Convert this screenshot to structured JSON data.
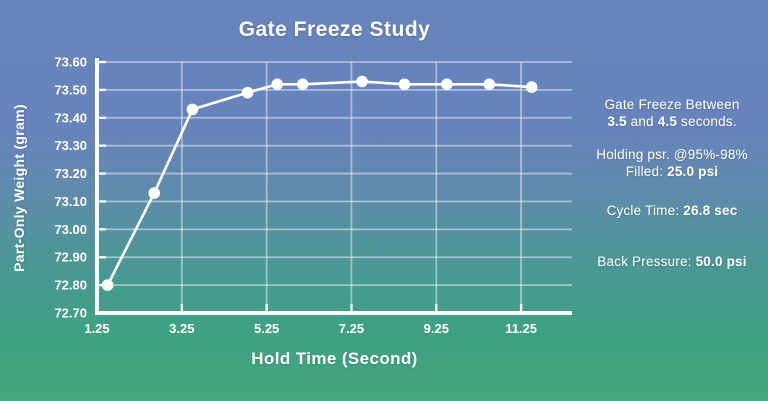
{
  "slide": {
    "background_top_color": "#6784bc",
    "background_bottom_color": "#47a57b",
    "foreground_color": "#ffffff"
  },
  "chart_data": {
    "type": "line",
    "title": "Gate Freeze Study",
    "xlabel": "Hold Time (Second)",
    "ylabel": "Part-Only Weight (gram)",
    "series": [
      {
        "name": "Part-Only Weight",
        "x": [
          1.5,
          2.6,
          3.5,
          4.8,
          5.5,
          6.1,
          7.5,
          8.5,
          9.5,
          10.5,
          11.5
        ],
        "y": [
          72.8,
          73.13,
          73.43,
          73.49,
          73.52,
          73.52,
          73.53,
          73.52,
          73.52,
          73.52,
          73.51
        ]
      }
    ],
    "xlim": [
      1.25,
      12.45
    ],
    "ylim": [
      72.7,
      73.6
    ],
    "x_ticks": [
      "1.25",
      "3.25",
      "5.25",
      "7.25",
      "9.25",
      "11.25"
    ],
    "y_ticks": [
      "72.70",
      "72.80",
      "72.90",
      "73.00",
      "73.10",
      "73.20",
      "73.30",
      "73.40",
      "73.50",
      "73.60"
    ],
    "grid": true,
    "legend_position": "none",
    "line_color": "#ffffff",
    "marker": "circle",
    "grid_color": "rgba(255,255,255,0.45)"
  },
  "annotations": {
    "blocks": [
      {
        "lines": [
          [
            {
              "t": "Gate Freeze Between",
              "b": false
            }
          ],
          [
            {
              "t": "3.5",
              "b": true
            },
            {
              "t": " and ",
              "b": false
            },
            {
              "t": "4.5",
              "b": true
            },
            {
              "t": " seconds.",
              "b": false
            }
          ]
        ]
      },
      {
        "lines": [
          [
            {
              "t": "Holding psr. @95%-98%",
              "b": false
            }
          ],
          [
            {
              "t": "Filled: ",
              "b": false
            },
            {
              "t": "25.0 psi",
              "b": true
            }
          ]
        ]
      },
      {
        "lines": [
          [
            {
              "t": "Cycle Time: ",
              "b": false
            },
            {
              "t": "26.8 sec",
              "b": true
            }
          ]
        ]
      },
      {
        "lines": [
          [
            {
              "t": "Back Pressure: ",
              "b": false
            },
            {
              "t": "50.0 psi",
              "b": true
            }
          ]
        ]
      }
    ]
  }
}
